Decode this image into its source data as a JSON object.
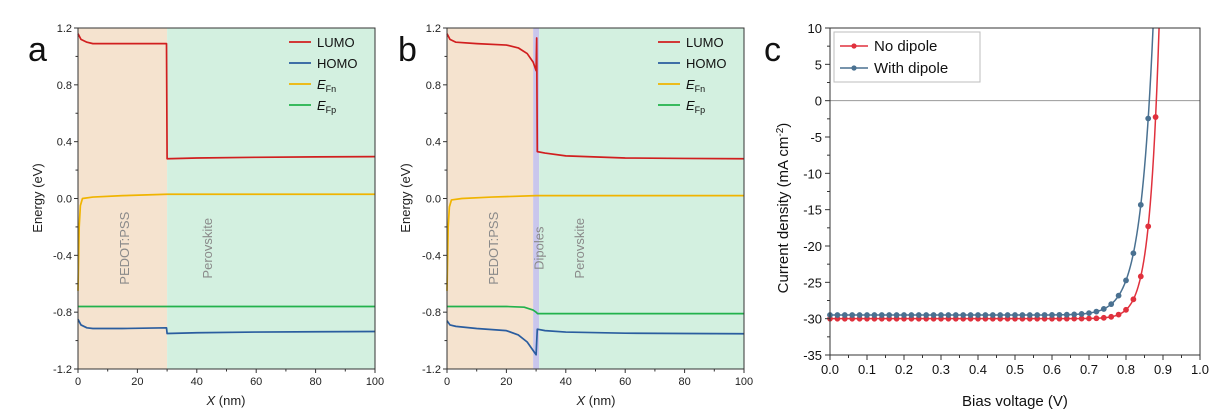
{
  "chart_data": [
    {
      "panel": "a",
      "type": "line",
      "xlabel_var": "X",
      "xlabel_unit": " (nm)",
      "ylabel": "Energy (eV)",
      "xlim": [
        0,
        100
      ],
      "ylim": [
        -1.2,
        1.2
      ],
      "xticks": [
        "0",
        "20",
        "40",
        "60",
        "80",
        "100"
      ],
      "yticks": [
        "-1.2",
        "-0.8",
        "-0.4",
        "0.0",
        "0.4",
        "0.8",
        "1.2"
      ],
      "regions": [
        {
          "name": "PEDOT:PSS",
          "x": [
            0,
            30
          ],
          "color": "#f5e3cf"
        },
        {
          "name": "Perovskite",
          "x": [
            30,
            100
          ],
          "color": "#d3f0e0"
        }
      ],
      "series": [
        {
          "name": "LUMO",
          "color": "#d11f1f",
          "points": [
            [
              0,
              1.16
            ],
            [
              1,
              1.12
            ],
            [
              3,
              1.1
            ],
            [
              5,
              1.09
            ],
            [
              15,
              1.09
            ],
            [
              29.8,
              1.09
            ],
            [
              30,
              0.28
            ],
            [
              40,
              0.285
            ],
            [
              60,
              0.29
            ],
            [
              80,
              0.293
            ],
            [
              100,
              0.295
            ]
          ]
        },
        {
          "name": "HOMO",
          "color": "#2a5d9f",
          "points": [
            [
              0,
              -0.85
            ],
            [
              1,
              -0.89
            ],
            [
              3,
              -0.91
            ],
            [
              5,
              -0.915
            ],
            [
              15,
              -0.915
            ],
            [
              29.8,
              -0.91
            ],
            [
              30,
              -0.95
            ],
            [
              40,
              -0.945
            ],
            [
              60,
              -0.94
            ],
            [
              80,
              -0.938
            ],
            [
              100,
              -0.936
            ]
          ]
        },
        {
          "name": "E_Fn",
          "color": "#f0b400",
          "points": [
            [
              0,
              -0.65
            ],
            [
              0.4,
              -0.2
            ],
            [
              0.8,
              -0.05
            ],
            [
              1.5,
              0.0
            ],
            [
              5,
              0.01
            ],
            [
              15,
              0.02
            ],
            [
              30,
              0.03
            ],
            [
              50,
              0.03
            ],
            [
              100,
              0.03
            ]
          ]
        },
        {
          "name": "E_Fp",
          "color": "#22b24c",
          "points": [
            [
              0,
              -0.76
            ],
            [
              100,
              -0.76
            ]
          ]
        }
      ],
      "legend": [
        {
          "main": "LUMO",
          "sub": ""
        },
        {
          "main": "HOMO",
          "sub": ""
        },
        {
          "main": "E",
          "sub": "Fn"
        },
        {
          "main": "E",
          "sub": "Fp"
        }
      ],
      "legend_position": "top-right"
    },
    {
      "panel": "b",
      "type": "line",
      "xlabel_var": "X",
      "xlabel_unit": " (nm)",
      "ylabel": "Energy (eV)",
      "xlim": [
        0,
        100
      ],
      "ylim": [
        -1.2,
        1.2
      ],
      "xticks": [
        "0",
        "20",
        "40",
        "60",
        "80",
        "100"
      ],
      "yticks": [
        "-1.2",
        "-0.8",
        "-0.4",
        "0.0",
        "0.4",
        "0.8",
        "1.2"
      ],
      "regions": [
        {
          "name": "PEDOT:PSS",
          "x": [
            0,
            29
          ],
          "color": "#f5e3cf"
        },
        {
          "name": "Dipoles",
          "x": [
            29,
            31
          ],
          "color": "#c9c6ec"
        },
        {
          "name": "Perovskite",
          "x": [
            31,
            100
          ],
          "color": "#d3f0e0"
        }
      ],
      "series": [
        {
          "name": "LUMO",
          "color": "#d11f1f",
          "points": [
            [
              0,
              1.16
            ],
            [
              1,
              1.12
            ],
            [
              3,
              1.1
            ],
            [
              10,
              1.09
            ],
            [
              20,
              1.08
            ],
            [
              24,
              1.06
            ],
            [
              27,
              1.02
            ],
            [
              29,
              0.96
            ],
            [
              30,
              0.9
            ],
            [
              30.2,
              1.13
            ],
            [
              30.4,
              0.33
            ],
            [
              33,
              0.32
            ],
            [
              40,
              0.3
            ],
            [
              60,
              0.285
            ],
            [
              80,
              0.282
            ],
            [
              100,
              0.28
            ]
          ]
        },
        {
          "name": "HOMO",
          "color": "#2a5d9f",
          "points": [
            [
              0,
              -0.86
            ],
            [
              1,
              -0.89
            ],
            [
              3,
              -0.9
            ],
            [
              10,
              -0.915
            ],
            [
              20,
              -0.93
            ],
            [
              24,
              -0.96
            ],
            [
              27,
              -1.01
            ],
            [
              29,
              -1.07
            ],
            [
              30,
              -1.1
            ],
            [
              30.4,
              -0.92
            ],
            [
              33,
              -0.93
            ],
            [
              40,
              -0.94
            ],
            [
              60,
              -0.948
            ],
            [
              80,
              -0.95
            ],
            [
              100,
              -0.952
            ]
          ]
        },
        {
          "name": "E_Fn",
          "color": "#f0b400",
          "points": [
            [
              0,
              -0.65
            ],
            [
              0.4,
              -0.2
            ],
            [
              0.8,
              -0.06
            ],
            [
              1.5,
              -0.01
            ],
            [
              5,
              0.0
            ],
            [
              15,
              0.01
            ],
            [
              30,
              0.02
            ],
            [
              50,
              0.02
            ],
            [
              100,
              0.02
            ]
          ]
        },
        {
          "name": "E_Fp",
          "color": "#22b24c",
          "points": [
            [
              0,
              -0.76
            ],
            [
              20,
              -0.76
            ],
            [
              26,
              -0.765
            ],
            [
              29,
              -0.785
            ],
            [
              30,
              -0.8
            ],
            [
              30.5,
              -0.81
            ],
            [
              40,
              -0.81
            ],
            [
              100,
              -0.81
            ]
          ]
        }
      ],
      "legend": [
        {
          "main": "LUMO",
          "sub": ""
        },
        {
          "main": "HOMO",
          "sub": ""
        },
        {
          "main": "E",
          "sub": "Fn"
        },
        {
          "main": "E",
          "sub": "Fp"
        }
      ],
      "legend_position": "top-right"
    },
    {
      "panel": "c",
      "type": "line",
      "xlabel": "Bias voltage (V)",
      "ylabel_pre": "Current density (mA cm",
      "ylabel_sup": "-2",
      "ylabel_post": ")",
      "xlim": [
        0.0,
        1.0
      ],
      "ylim": [
        -35,
        10
      ],
      "xticks": [
        "0.0",
        "0.1",
        "0.2",
        "0.3",
        "0.4",
        "0.5",
        "0.6",
        "0.7",
        "0.8",
        "0.9",
        "1.0"
      ],
      "yticks": [
        "-35",
        "-30",
        "-25",
        "-20",
        "-15",
        "-10",
        "-5",
        "0",
        "5",
        "10"
      ],
      "zero_line": true,
      "series": [
        {
          "name": "No dipole",
          "color": "#e0313d",
          "Jsc": -30.0,
          "Voc": 0.882,
          "Vt": 0.0256,
          "n": 1.0
        },
        {
          "name": "With dipole",
          "color": "#4a7191",
          "Jsc": -29.5,
          "Voc": 0.863,
          "Vt": 0.0256,
          "n": 1.35
        }
      ],
      "marker_step": 0.02,
      "legend_position": "top-left"
    }
  ],
  "colors": {
    "frame": "#333333",
    "zero_line": "#9a9a9a"
  }
}
